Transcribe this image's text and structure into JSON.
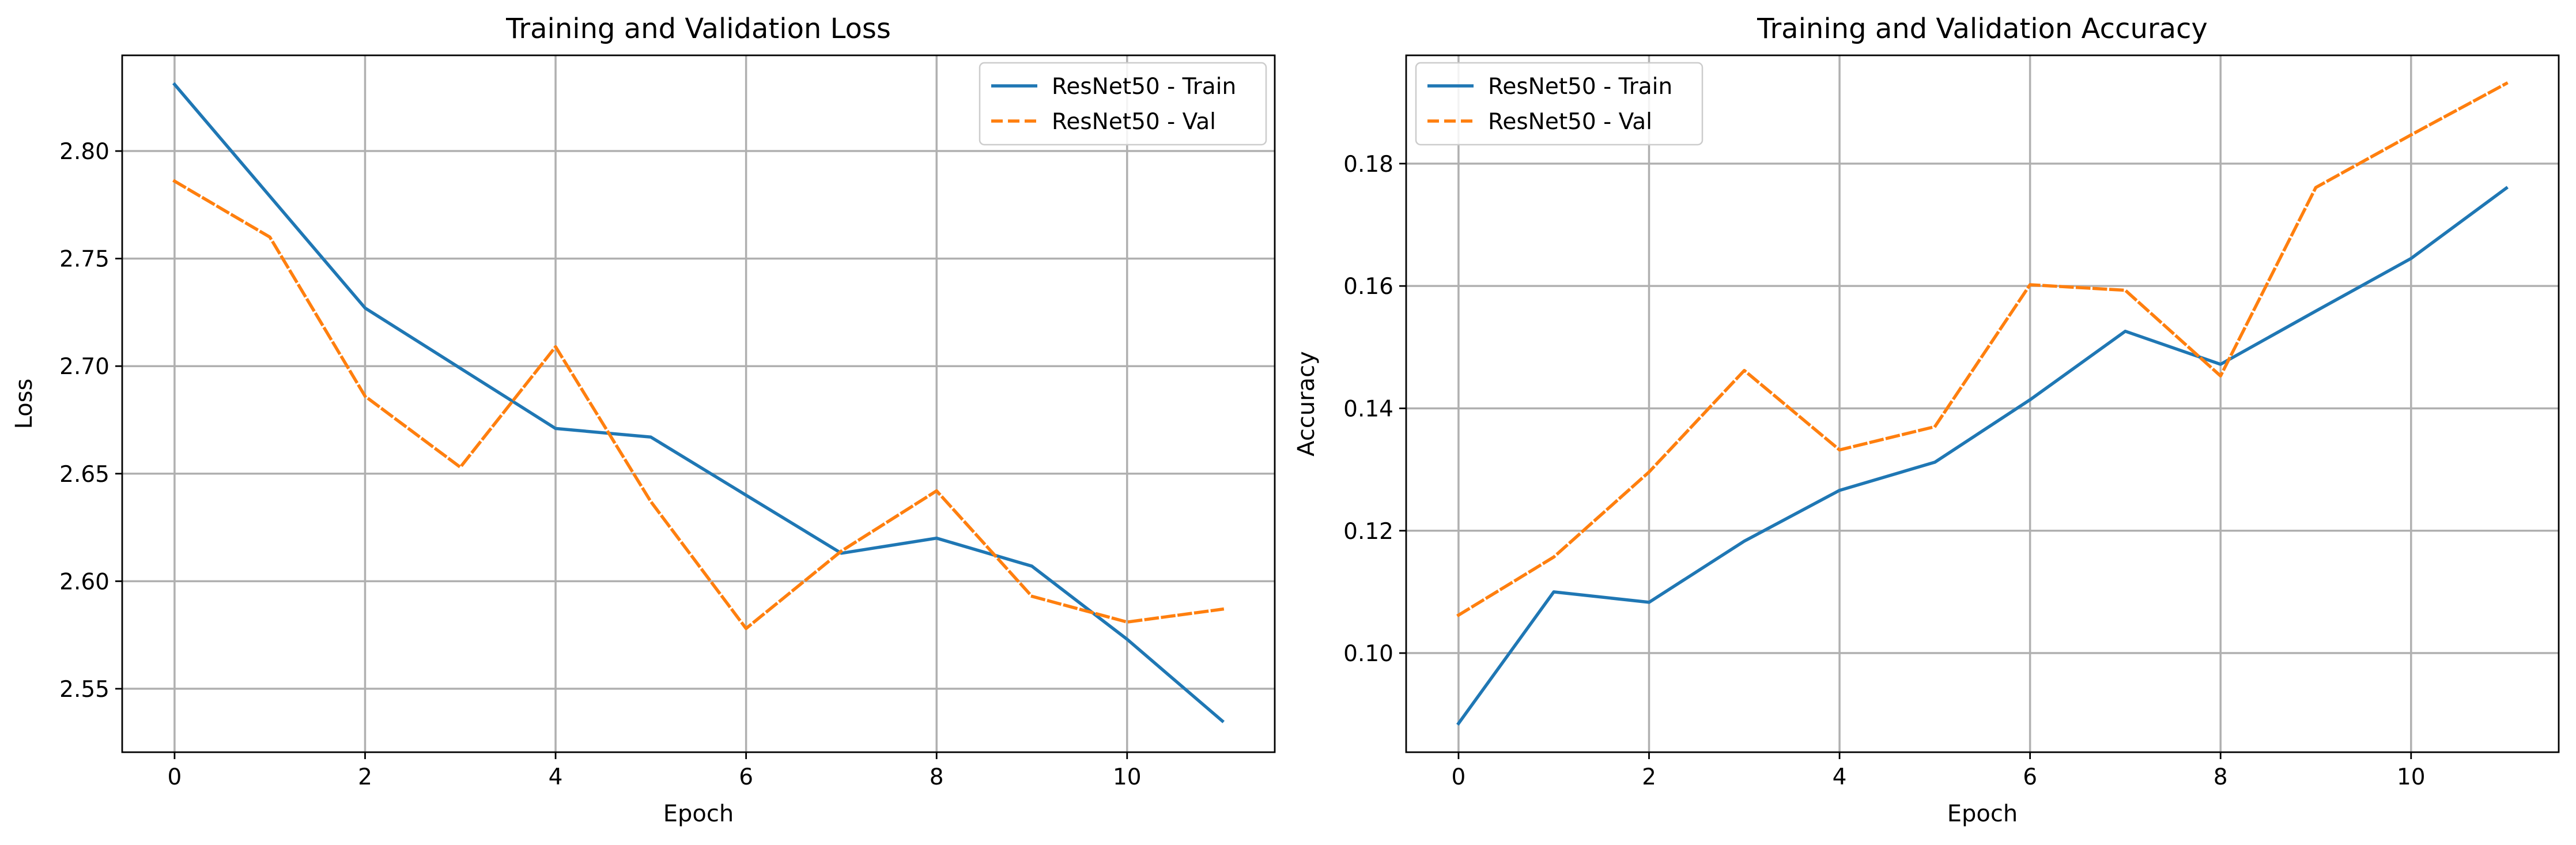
{
  "chart_data": [
    {
      "type": "line",
      "title": "Training and Validation Loss",
      "xlabel": "Epoch",
      "ylabel": "Loss",
      "xlim": [
        -0.55,
        11.55
      ],
      "ylim": [
        2.5205,
        2.8445
      ],
      "xticks": [
        0,
        2,
        4,
        6,
        8,
        10
      ],
      "yticks": [
        2.55,
        2.6,
        2.65,
        2.7,
        2.75,
        2.8
      ],
      "ytick_labels": [
        "2.55",
        "2.60",
        "2.65",
        "2.70",
        "2.75",
        "2.80"
      ],
      "grid": true,
      "legend_position": "top-right",
      "x": [
        0,
        1,
        2,
        3,
        4,
        5,
        6,
        7,
        8,
        9,
        10,
        11
      ],
      "series": [
        {
          "name": "ResNet50 - Train",
          "color": "#1f77b4",
          "style": "solid",
          "values": [
            2.831,
            2.779,
            2.727,
            2.699,
            2.671,
            2.667,
            2.64,
            2.613,
            2.62,
            2.607,
            2.573,
            2.535
          ]
        },
        {
          "name": "ResNet50 - Val",
          "color": "#ff7f0e",
          "style": "dashed",
          "values": [
            2.786,
            2.76,
            2.686,
            2.653,
            2.709,
            2.637,
            2.578,
            2.614,
            2.642,
            2.593,
            2.581,
            2.587
          ]
        }
      ]
    },
    {
      "type": "line",
      "title": "Training and Validation Accuracy",
      "xlabel": "Epoch",
      "ylabel": "Accuracy",
      "xlim": [
        -0.55,
        11.55
      ],
      "ylim": [
        0.0838,
        0.1977
      ],
      "xticks": [
        0,
        2,
        4,
        6,
        8,
        10
      ],
      "yticks": [
        0.1,
        0.12,
        0.14,
        0.16,
        0.18
      ],
      "ytick_labels": [
        "0.10",
        "0.12",
        "0.14",
        "0.16",
        "0.18"
      ],
      "grid": true,
      "legend_position": "top-left",
      "x": [
        0,
        1,
        2,
        3,
        4,
        5,
        6,
        7,
        8,
        9,
        10,
        11
      ],
      "series": [
        {
          "name": "ResNet50 - Train",
          "color": "#1f77b4",
          "style": "solid",
          "values": [
            0.0885,
            0.11,
            0.1083,
            0.1183,
            0.1266,
            0.1312,
            0.1414,
            0.1526,
            0.1472,
            0.1559,
            0.1645,
            0.176
          ]
        },
        {
          "name": "ResNet50 - Val",
          "color": "#ff7f0e",
          "style": "dashed",
          "values": [
            0.1062,
            0.1157,
            0.1296,
            0.1462,
            0.1332,
            0.137,
            0.1602,
            0.1593,
            0.1453,
            0.1761,
            0.1847,
            0.1931
          ]
        }
      ]
    }
  ]
}
